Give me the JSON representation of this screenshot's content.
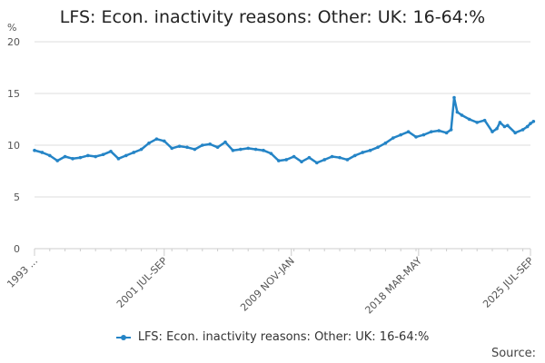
{
  "title": "LFS: Econ. inactivity reasons: Other: UK: 16-64:%",
  "source_label": "Source:",
  "colors": {
    "series": "#2484c6",
    "grid": "#dcdcdc",
    "axis": "#cccccc",
    "text": "#555555"
  },
  "chart_data": {
    "type": "line",
    "title": "LFS: Econ. inactivity reasons: Other: UK: 16-64:%",
    "ylabel": "%",
    "ylim": [
      0,
      20
    ],
    "yticks": [
      0,
      5,
      10,
      15,
      20
    ],
    "x_tick_labels": [
      "1993 ...",
      "2001 JUL-SEP",
      "2009 NOV-JAN",
      "2018 MAR-MAY",
      "2025 JUL-SEP"
    ],
    "x_tick_years": [
      1993.0,
      2001.5,
      2009.83,
      2018.17,
      2025.5
    ],
    "grid": true,
    "legend_position": "bottom",
    "series": [
      {
        "name": "LFS: Econ. inactivity reasons: Other: UK: 16-64:%",
        "x_years": [
          1993.0,
          1993.5,
          1994.0,
          1994.5,
          1995.0,
          1995.5,
          1996.0,
          1996.5,
          1997.0,
          1997.5,
          1998.0,
          1998.5,
          1999.0,
          1999.5,
          2000.0,
          2000.5,
          2001.0,
          2001.5,
          2002.0,
          2002.5,
          2003.0,
          2003.5,
          2004.0,
          2004.5,
          2005.0,
          2005.5,
          2006.0,
          2006.5,
          2007.0,
          2007.5,
          2008.0,
          2008.5,
          2009.0,
          2009.5,
          2010.0,
          2010.5,
          2011.0,
          2011.5,
          2012.0,
          2012.5,
          2013.0,
          2013.5,
          2014.0,
          2014.5,
          2015.0,
          2015.5,
          2016.0,
          2016.5,
          2017.0,
          2017.5,
          2018.0,
          2018.5,
          2019.0,
          2019.5,
          2020.0,
          2020.3,
          2020.5,
          2020.7,
          2021.0,
          2021.5,
          2022.0,
          2022.5,
          2023.0,
          2023.3,
          2023.5,
          2023.8,
          2024.0,
          2024.5,
          2025.0,
          2025.3,
          2025.5,
          2025.7
        ],
        "values": [
          9.5,
          9.3,
          9.0,
          8.5,
          8.9,
          8.7,
          8.8,
          9.0,
          8.9,
          9.1,
          9.4,
          8.7,
          9.0,
          9.3,
          9.6,
          10.2,
          10.6,
          10.4,
          9.7,
          9.9,
          9.8,
          9.6,
          10.0,
          10.1,
          9.8,
          10.3,
          9.5,
          9.6,
          9.7,
          9.6,
          9.5,
          9.2,
          8.5,
          8.6,
          8.9,
          8.4,
          8.8,
          8.3,
          8.6,
          8.9,
          8.8,
          8.6,
          9.0,
          9.3,
          9.5,
          9.8,
          10.2,
          10.7,
          11.0,
          11.3,
          10.8,
          11.0,
          11.3,
          11.4,
          11.2,
          11.5,
          14.6,
          13.2,
          12.9,
          12.5,
          12.2,
          12.4,
          11.3,
          11.6,
          12.2,
          11.8,
          11.9,
          11.2,
          11.5,
          11.8,
          12.1,
          12.3
        ]
      }
    ]
  }
}
